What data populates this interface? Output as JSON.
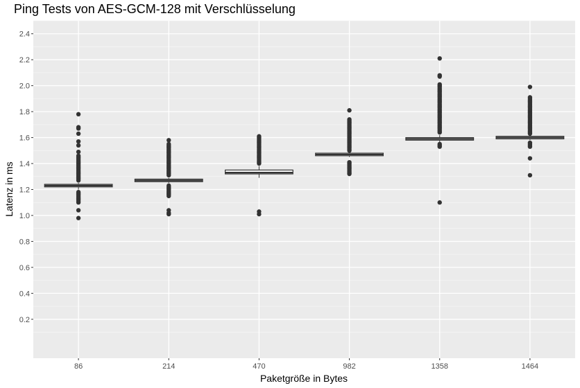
{
  "chart_data": {
    "type": "box",
    "title": "Ping Tests von AES-GCM-128 mit Verschlüsselung",
    "xlabel": "Paketgröße in Bytes",
    "ylabel": "Latenz in ms",
    "ylim": [
      -0.1,
      2.5
    ],
    "yticks": [
      "0.2",
      "0.4",
      "0.6",
      "0.8",
      "1.0",
      "1.2",
      "1.4",
      "1.6",
      "1.8",
      "2.0",
      "2.2",
      "2.4"
    ],
    "grid": true,
    "colors": {
      "panel": "#ebebeb",
      "grid_major": "#ffffff",
      "grid_minor": "#f5f5f5",
      "box_fill": "#ffffff",
      "ink": "#333333"
    },
    "categories": [
      "86",
      "214",
      "470",
      "982",
      "1358",
      "1464"
    ],
    "boxes": [
      {
        "category": "86",
        "lower_whisker": 1.2,
        "q1": 1.22,
        "median": 1.23,
        "q3": 1.24,
        "upper_whisker": 1.25,
        "outliers": [
          0.98,
          1.04,
          1.1,
          1.11,
          1.12,
          1.13,
          1.14,
          1.15,
          1.16,
          1.17,
          1.18,
          1.27,
          1.28,
          1.29,
          1.3,
          1.31,
          1.32,
          1.33,
          1.34,
          1.35,
          1.36,
          1.37,
          1.38,
          1.39,
          1.4,
          1.41,
          1.42,
          1.43,
          1.44,
          1.45,
          1.46,
          1.49,
          1.54,
          1.57,
          1.63,
          1.67,
          1.68,
          1.78
        ]
      },
      {
        "category": "214",
        "lower_whisker": 1.25,
        "q1": 1.26,
        "median": 1.27,
        "q3": 1.28,
        "upper_whisker": 1.29,
        "outliers": [
          1.01,
          1.02,
          1.04,
          1.15,
          1.16,
          1.17,
          1.18,
          1.19,
          1.2,
          1.21,
          1.22,
          1.23,
          1.31,
          1.32,
          1.33,
          1.34,
          1.35,
          1.36,
          1.37,
          1.38,
          1.39,
          1.4,
          1.41,
          1.42,
          1.43,
          1.44,
          1.45,
          1.46,
          1.47,
          1.48,
          1.49,
          1.5,
          1.51,
          1.52,
          1.53,
          1.54,
          1.55,
          1.58
        ]
      },
      {
        "category": "470",
        "lower_whisker": 1.29,
        "q1": 1.32,
        "median": 1.33,
        "q3": 1.35,
        "upper_whisker": 1.38,
        "outliers": [
          1.01,
          1.03,
          1.4,
          1.41,
          1.42,
          1.43,
          1.44,
          1.45,
          1.46,
          1.47,
          1.48,
          1.49,
          1.5,
          1.51,
          1.52,
          1.53,
          1.54,
          1.55,
          1.56,
          1.57,
          1.58,
          1.59,
          1.6,
          1.61
        ]
      },
      {
        "category": "982",
        "lower_whisker": 1.45,
        "q1": 1.46,
        "median": 1.47,
        "q3": 1.48,
        "upper_whisker": 1.49,
        "outliers": [
          1.32,
          1.33,
          1.34,
          1.35,
          1.36,
          1.37,
          1.38,
          1.39,
          1.4,
          1.41,
          1.5,
          1.51,
          1.52,
          1.53,
          1.54,
          1.55,
          1.56,
          1.57,
          1.58,
          1.59,
          1.6,
          1.61,
          1.62,
          1.63,
          1.64,
          1.65,
          1.66,
          1.67,
          1.68,
          1.69,
          1.7,
          1.71,
          1.72,
          1.73,
          1.74,
          1.81
        ]
      },
      {
        "category": "1358",
        "lower_whisker": 1.56,
        "q1": 1.58,
        "median": 1.59,
        "q3": 1.6,
        "upper_whisker": 1.62,
        "outliers": [
          1.1,
          1.53,
          1.54,
          1.55,
          1.64,
          1.65,
          1.66,
          1.67,
          1.68,
          1.69,
          1.7,
          1.71,
          1.72,
          1.73,
          1.74,
          1.75,
          1.76,
          1.77,
          1.78,
          1.79,
          1.8,
          1.81,
          1.82,
          1.83,
          1.84,
          1.85,
          1.86,
          1.87,
          1.88,
          1.89,
          1.9,
          1.91,
          1.92,
          1.93,
          1.94,
          1.95,
          1.96,
          1.97,
          1.98,
          1.99,
          2.0,
          2.01,
          2.07,
          2.08,
          2.21
        ]
      },
      {
        "category": "1464",
        "lower_whisker": 1.58,
        "q1": 1.59,
        "median": 1.6,
        "q3": 1.61,
        "upper_whisker": 1.62,
        "outliers": [
          1.31,
          1.44,
          1.53,
          1.54,
          1.55,
          1.56,
          1.63,
          1.64,
          1.65,
          1.66,
          1.67,
          1.68,
          1.69,
          1.7,
          1.71,
          1.72,
          1.73,
          1.74,
          1.75,
          1.76,
          1.77,
          1.78,
          1.79,
          1.8,
          1.81,
          1.82,
          1.83,
          1.84,
          1.85,
          1.86,
          1.87,
          1.88,
          1.89,
          1.9,
          1.91,
          1.99
        ]
      }
    ]
  }
}
